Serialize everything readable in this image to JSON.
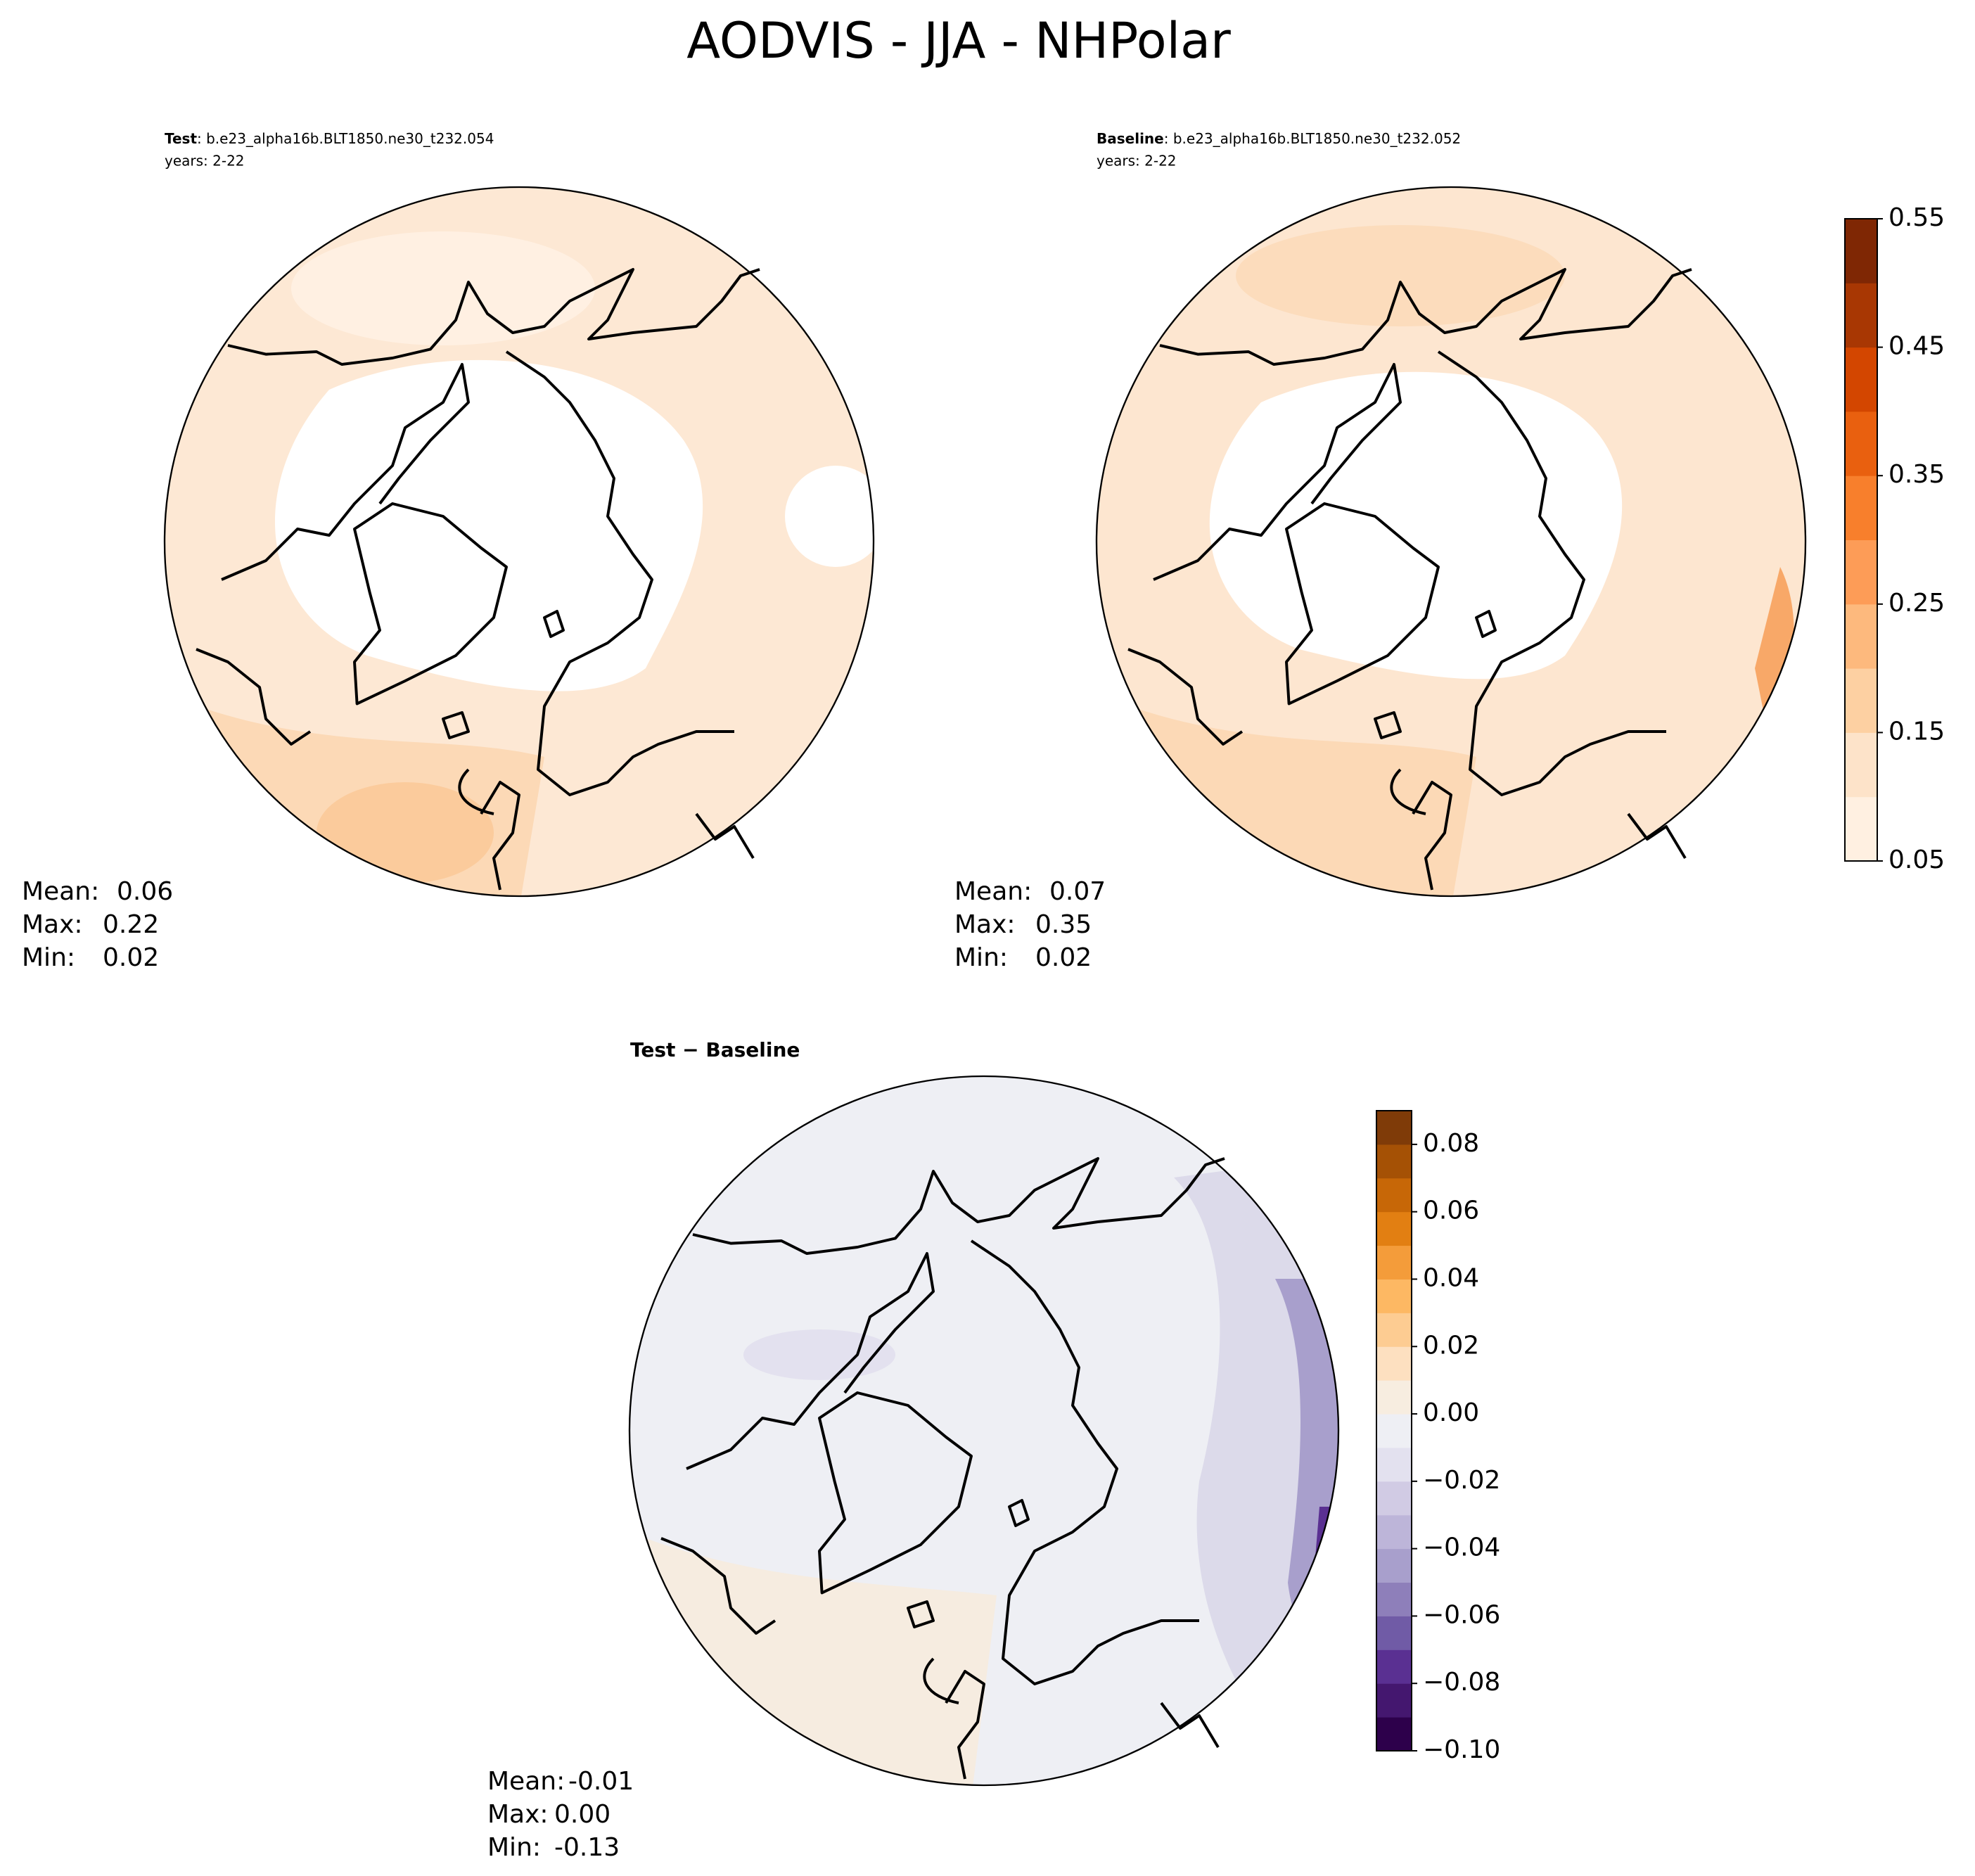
{
  "title": "AODVIS - JJA - NHPolar",
  "panels": [
    {
      "label": "Test",
      "case": ": b.e23_alpha16b.BLT1850.ne30_t232.054",
      "years": "years: 2-22",
      "stats": [
        [
          "Mean:",
          "0.06"
        ],
        [
          "Max:",
          "0.22"
        ],
        [
          "Min:",
          "0.02"
        ]
      ]
    },
    {
      "label": "Baseline",
      "case": ": b.e23_alpha16b.BLT1850.ne30_t232.052",
      "years": "years: 2-22",
      "stats": [
        [
          "Mean:",
          "0.07"
        ],
        [
          "Max:",
          "0.35"
        ],
        [
          "Min:",
          "0.02"
        ]
      ]
    },
    {
      "label": "Test − Baseline",
      "stats": [
        [
          "Mean:",
          "-0.01"
        ],
        [
          "Max:",
          "0.00"
        ],
        [
          "Min:",
          "-0.13"
        ]
      ]
    }
  ],
  "colorbars": [
    {
      "ticks": [
        "0.55",
        "0.45",
        "0.35",
        "0.25",
        "0.15",
        "0.05"
      ]
    },
    {
      "ticks": [
        "0.08",
        "0.06",
        "0.04",
        "0.02",
        "0.00",
        "−0.02",
        "−0.04",
        "−0.06",
        "−0.08",
        "−0.10"
      ]
    }
  ]
}
